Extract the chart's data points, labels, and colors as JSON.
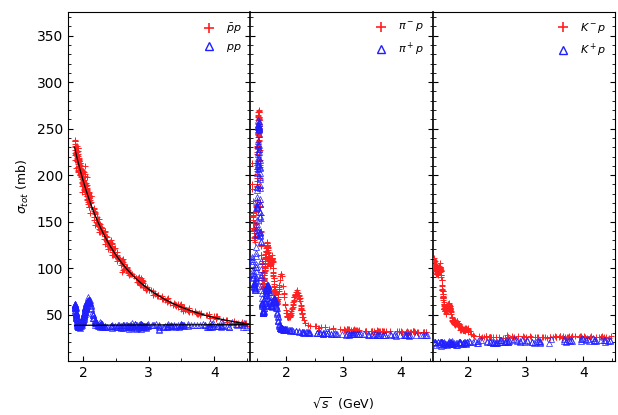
{
  "ylabel": "$\\sigma_{tot}$ (mb)",
  "xlabel": "$\\sqrt{s}$  (GeV)",
  "ylim": [
    0,
    375
  ],
  "yticks": [
    50,
    100,
    150,
    200,
    250,
    300,
    350
  ],
  "panel1_xlim": [
    1.77,
    4.55
  ],
  "panel23_xlim": [
    1.38,
    4.55
  ],
  "xticks": [
    2,
    3,
    4
  ],
  "colors": {
    "red": "#ff2020",
    "blue": "#2020ff"
  },
  "legend1": [
    {
      "label": "$\\bar{p}p$",
      "color": "#ff2020",
      "marker": "+"
    },
    {
      "label": "$pp$",
      "color": "#2020ff",
      "marker": "^"
    }
  ],
  "legend2": [
    {
      "label": "$\\pi^-p$",
      "color": "#ff2020",
      "marker": "+"
    },
    {
      "label": "$\\pi^+p$",
      "color": "#2020ff",
      "marker": "^"
    }
  ],
  "legend3": [
    {
      "label": "$K^-p$",
      "color": "#ff2020",
      "marker": "+"
    },
    {
      "label": "$K^+p$",
      "color": "#2020ff",
      "marker": "^"
    }
  ]
}
